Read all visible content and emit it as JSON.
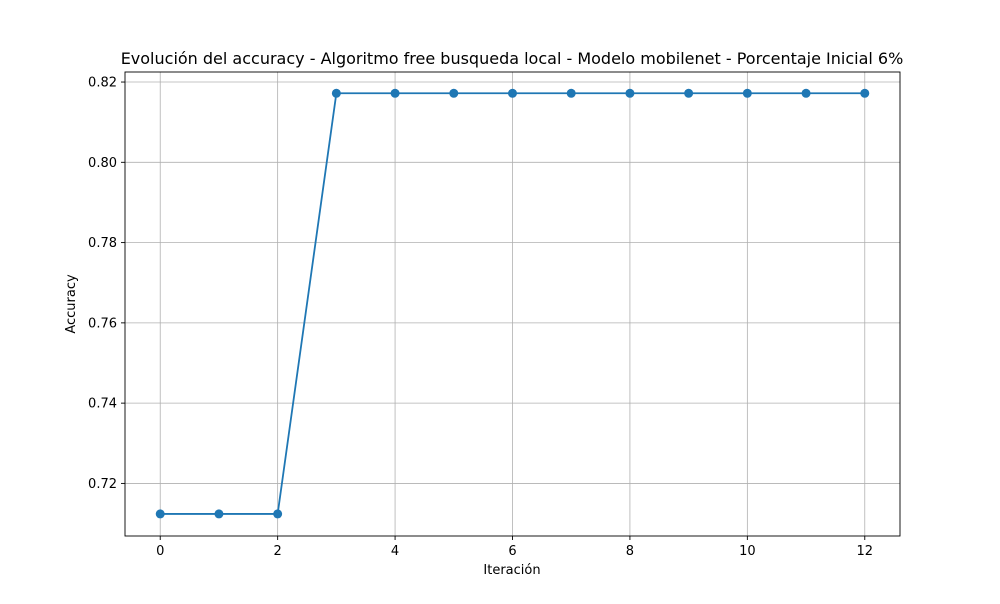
{
  "chart_data": {
    "type": "line",
    "title": "Evolución del accuracy - Algoritmo free busqueda local - Modelo mobilenet - Porcentaje Inicial 6%",
    "xlabel": "Iteración",
    "ylabel": "Accuracy",
    "x": [
      0,
      1,
      2,
      3,
      4,
      5,
      6,
      7,
      8,
      9,
      10,
      11,
      12
    ],
    "series": [
      {
        "values": [
          0.7124,
          0.7124,
          0.7124,
          0.8172,
          0.8172,
          0.8172,
          0.8172,
          0.8172,
          0.8172,
          0.8172,
          0.8172,
          0.8172,
          0.8172
        ],
        "color": "#1f77b4",
        "marker": "circle"
      }
    ],
    "xlim": [
      -0.6,
      12.6
    ],
    "ylim": [
      0.7069,
      0.8225
    ],
    "xticks": [
      0,
      2,
      4,
      6,
      8,
      10,
      12
    ],
    "xtick_labels": [
      "0",
      "2",
      "4",
      "6",
      "8",
      "10",
      "12"
    ],
    "yticks": [
      0.72,
      0.74,
      0.76,
      0.78,
      0.8,
      0.82
    ],
    "ytick_labels": [
      "0.72",
      "0.74",
      "0.76",
      "0.78",
      "0.80",
      "0.82"
    ],
    "grid": true,
    "colors": {
      "line": "#1f77b4",
      "grid": "#b0b0b0",
      "axes": "#000000"
    }
  }
}
